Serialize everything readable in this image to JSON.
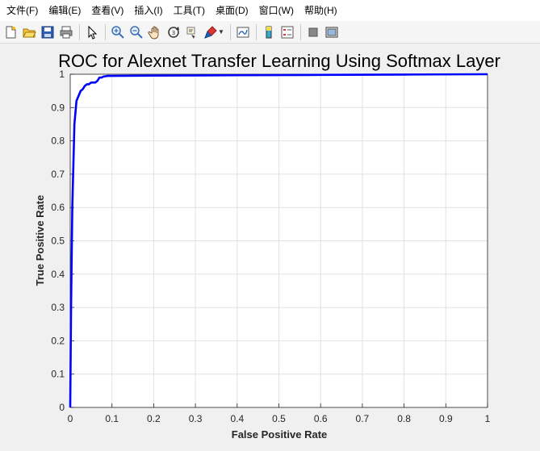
{
  "menubar": {
    "items": [
      "文件(F)",
      "编辑(E)",
      "查看(V)",
      "插入(I)",
      "工具(T)",
      "桌面(D)",
      "窗口(W)",
      "帮助(H)"
    ]
  },
  "toolbar": {
    "buttons": [
      {
        "name": "new-figure-icon"
      },
      {
        "name": "open-file-icon"
      },
      {
        "name": "save-icon"
      },
      {
        "name": "print-icon"
      },
      {
        "name": "separator"
      },
      {
        "name": "edit-plot-arrow-icon"
      },
      {
        "name": "separator"
      },
      {
        "name": "zoom-in-icon"
      },
      {
        "name": "zoom-out-icon"
      },
      {
        "name": "pan-hand-icon"
      },
      {
        "name": "rotate-3d-icon"
      },
      {
        "name": "data-cursor-icon"
      },
      {
        "name": "brush-icon"
      },
      {
        "name": "separator"
      },
      {
        "name": "link-plot-icon"
      },
      {
        "name": "separator"
      },
      {
        "name": "colorbar-icon"
      },
      {
        "name": "legend-icon"
      },
      {
        "name": "separator"
      },
      {
        "name": "hide-plot-tools-icon"
      },
      {
        "name": "show-plot-tools-icon"
      }
    ]
  },
  "colors": {
    "line": "#0000ff",
    "axes_background": "#ffffff",
    "figure_background": "#f0f0f0",
    "grid": "#e1e1e1"
  },
  "chart_data": {
    "type": "line",
    "title": "ROC for Alexnet Transfer Learning Using Softmax Layer",
    "xlabel": "False Positive Rate",
    "ylabel": "True Positive Rate",
    "xlim": [
      0,
      1
    ],
    "ylim": [
      0,
      1
    ],
    "xticks": [
      "0",
      "0.1",
      "0.2",
      "0.3",
      "0.4",
      "0.5",
      "0.6",
      "0.7",
      "0.8",
      "0.9",
      "1"
    ],
    "yticks": [
      "0",
      "0.1",
      "0.2",
      "0.3",
      "0.4",
      "0.5",
      "0.6",
      "0.7",
      "0.8",
      "0.9",
      "1"
    ],
    "grid": true,
    "legend": false,
    "series": [
      {
        "x": [
          0,
          0.002,
          0.005,
          0.01,
          0.015,
          0.02,
          0.025,
          0.03,
          0.035,
          0.04,
          0.045,
          0.05,
          0.055,
          0.06,
          0.065,
          0.07,
          0.075,
          0.08,
          0.09,
          0.1,
          0.2,
          0.4,
          0.6,
          0.8,
          1
        ],
        "y": [
          0,
          0.3,
          0.6,
          0.85,
          0.92,
          0.935,
          0.95,
          0.955,
          0.965,
          0.97,
          0.97,
          0.975,
          0.975,
          0.975,
          0.98,
          0.99,
          0.99,
          0.993,
          0.995,
          0.995,
          0.996,
          0.997,
          0.998,
          0.999,
          1
        ]
      }
    ]
  }
}
